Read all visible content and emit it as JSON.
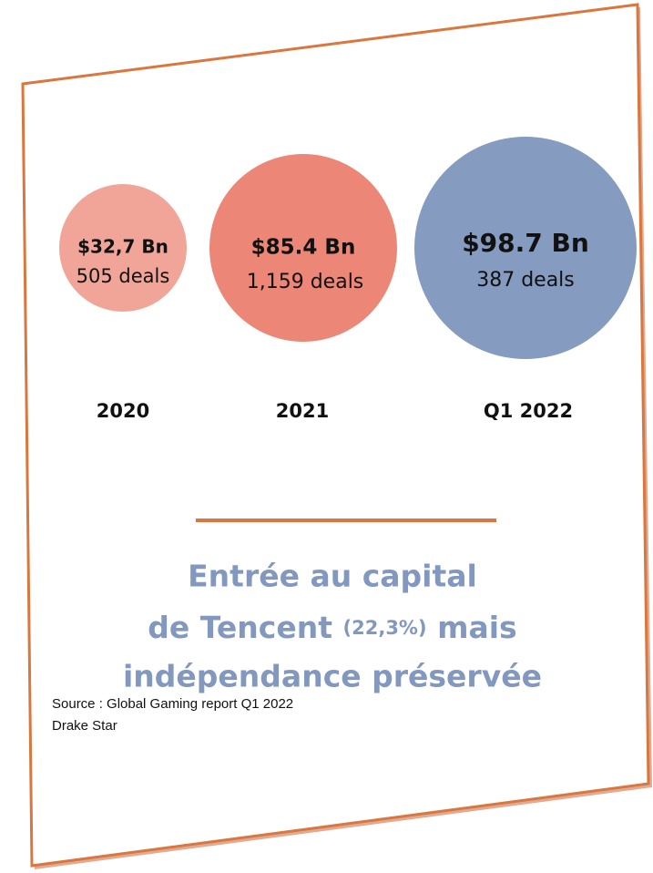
{
  "bubbles": [
    {
      "amount": "$32,7 Bn",
      "deals": "505 deals",
      "period": "2020"
    },
    {
      "amount": "$85.4 Bn",
      "deals": "1,159 deals",
      "period": "2021"
    },
    {
      "amount": "$98.7 Bn",
      "deals": "387 deals",
      "period": "Q1 2022"
    }
  ],
  "headline": {
    "line1": "Entrée au capital",
    "line2_start": "de Tencent",
    "line2_note": "(22,3%)",
    "line2_end": "mais",
    "line3": "indépendance préservée"
  },
  "source": {
    "line1": "Source : Global Gaming report Q1 2022",
    "line2": "Drake Star"
  }
}
